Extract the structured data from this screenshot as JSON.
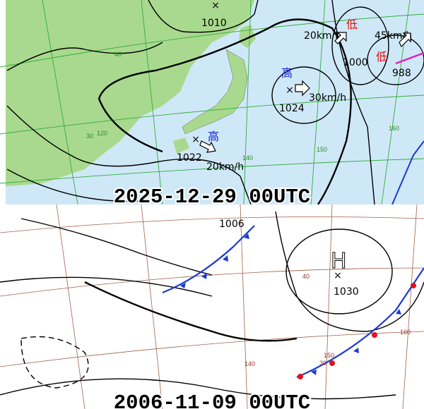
{
  "top": {
    "texts": [
      "1010",
      "20km/h",
      "低",
      "45km/h",
      "低",
      "1000",
      "988",
      "高",
      "1024",
      "30km/h",
      "高",
      "1022",
      "20km/h",
      "40",
      "30",
      "140",
      "150",
      "160",
      "120"
    ],
    "date": "2025-12-29 00UTC"
  },
  "bottom": {
    "texts": [
      "1006",
      "H",
      "1030",
      "40",
      "30",
      "140",
      "150",
      "160"
    ],
    "date": "2006-11-09 00UTC"
  }
}
